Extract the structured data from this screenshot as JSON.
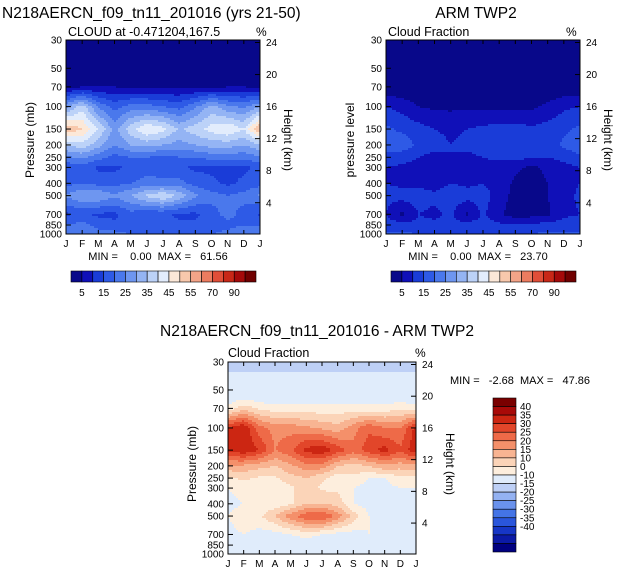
{
  "page": {
    "months": [
      "J",
      "F",
      "M",
      "A",
      "M",
      "J",
      "J",
      "A",
      "S",
      "O",
      "N",
      "D",
      "J"
    ],
    "pressure_ticks": [
      30,
      50,
      70,
      100,
      150,
      200,
      250,
      300,
      400,
      500,
      700,
      850,
      1000
    ],
    "height_ticks": [
      24,
      20,
      16,
      12,
      8,
      4
    ],
    "percent_symbol": "%",
    "pressure_label": "Pressure (mb)",
    "pressure_level_label": "pressure level",
    "height_label": "Height (km)"
  },
  "colors": {
    "seq": [
      "#08088a",
      "#1010b8",
      "#1a3cd8",
      "#2e5ae6",
      "#4a78ec",
      "#6e96f0",
      "#94b4f4",
      "#bcd2f8",
      "#e2ecfc",
      "#fce8d8",
      "#f8c8ac",
      "#f4a488",
      "#ec7c60",
      "#e04e38",
      "#c82818",
      "#a40a0a",
      "#700000"
    ],
    "diff": [
      "#000080",
      "#0b1aa6",
      "#1636c6",
      "#2a56dc",
      "#4474e6",
      "#6a92ec",
      "#94b2f2",
      "#bed0f6",
      "#e0ecfb",
      "#fdeedd",
      "#fbd4b8",
      "#f8b492",
      "#f4906a",
      "#ee6a48",
      "#e2462a",
      "#cc2612",
      "#a80a08",
      "#7a0000"
    ]
  },
  "panels": {
    "model": {
      "title": "N218AERCN_f09_tn11_201016 (yrs 21-50)",
      "subtitle": "CLOUD at -0.471204,167.5",
      "minmax": "MIN =    0.00  MAX =   61.56",
      "colorbar_labels": [
        "5",
        "15",
        "25",
        "35",
        "45",
        "55",
        "70",
        "90"
      ]
    },
    "obs": {
      "title": "ARM TWP2",
      "subtitle": "Cloud Fraction",
      "minmax": "MIN =    0.00  MAX =   23.70",
      "colorbar_labels": [
        "5",
        "15",
        "25",
        "35",
        "45",
        "55",
        "70",
        "90"
      ]
    },
    "diff": {
      "title": "N218AERCN_f09_tn11_201016 - ARM TWP2",
      "subtitle": "Cloud Fraction",
      "minmax": "MIN =   -2.68  MAX =   47.86",
      "colorbar_labels": [
        "40",
        "35",
        "30",
        "25",
        "20",
        "15",
        "10",
        "0",
        "-10",
        "-15",
        "-20",
        "-25",
        "-30",
        "-35",
        "-40"
      ]
    }
  },
  "chart_data": [
    {
      "type": "heatmap",
      "title": "N218AERCN_f09_tn11_201016 (yrs 21-50)",
      "subtitle": "CLOUD at -0.471204,167.5",
      "xlabel": "",
      "ylabel": "Pressure (mb)",
      "y2label": "Height (km)",
      "x": [
        "J",
        "F",
        "M",
        "A",
        "M",
        "J",
        "J",
        "A",
        "S",
        "O",
        "N",
        "D",
        "J"
      ],
      "y_pressure_mb": [
        30,
        50,
        70,
        100,
        150,
        200,
        250,
        300,
        400,
        500,
        700,
        850,
        1000
      ],
      "levels": [
        5,
        10,
        15,
        20,
        25,
        30,
        35,
        40,
        45,
        50,
        55,
        60,
        70,
        80,
        90,
        100
      ],
      "min": 0.0,
      "max": 61.56,
      "z": [
        [
          0,
          0,
          0,
          0,
          0,
          0,
          0,
          0,
          0,
          0,
          0,
          0,
          0
        ],
        [
          1,
          1,
          1,
          1,
          1,
          1,
          1,
          1,
          1,
          1,
          1,
          1,
          1
        ],
        [
          4,
          5,
          5,
          5,
          4,
          4,
          4,
          4,
          4,
          4,
          5,
          5,
          4
        ],
        [
          28,
          38,
          24,
          18,
          22,
          22,
          20,
          18,
          24,
          32,
          26,
          24,
          30
        ],
        [
          55,
          50,
          40,
          28,
          38,
          45,
          42,
          34,
          38,
          42,
          45,
          40,
          56
        ],
        [
          35,
          38,
          32,
          25,
          30,
          32,
          30,
          28,
          30,
          32,
          32,
          30,
          34
        ],
        [
          24,
          26,
          22,
          18,
          20,
          20,
          18,
          20,
          20,
          22,
          22,
          22,
          24
        ],
        [
          16,
          18,
          14,
          14,
          16,
          18,
          16,
          16,
          14,
          14,
          14,
          14,
          16
        ],
        [
          18,
          20,
          18,
          18,
          20,
          22,
          22,
          22,
          18,
          16,
          14,
          16,
          18
        ],
        [
          26,
          30,
          30,
          26,
          30,
          36,
          40,
          34,
          26,
          22,
          20,
          22,
          26
        ],
        [
          14,
          16,
          14,
          14,
          18,
          16,
          16,
          14,
          14,
          18,
          22,
          18,
          14
        ],
        [
          20,
          22,
          18,
          16,
          16,
          16,
          16,
          16,
          16,
          16,
          18,
          20,
          20
        ],
        [
          24,
          24,
          22,
          22,
          20,
          20,
          20,
          20,
          20,
          20,
          22,
          24,
          24
        ]
      ]
    },
    {
      "type": "heatmap",
      "title": "ARM TWP2",
      "subtitle": "Cloud Fraction",
      "xlabel": "",
      "ylabel": "pressure level",
      "y2label": "Height (km)",
      "x": [
        "J",
        "F",
        "M",
        "A",
        "M",
        "J",
        "J",
        "A",
        "S",
        "O",
        "N",
        "D",
        "J"
      ],
      "y_pressure_mb": [
        30,
        50,
        70,
        100,
        150,
        200,
        250,
        300,
        400,
        500,
        700,
        850,
        1000
      ],
      "levels": [
        5,
        10,
        15,
        20,
        25,
        30,
        35,
        40,
        45,
        50,
        55,
        60,
        70,
        80,
        90,
        100
      ],
      "min": 0.0,
      "max": 23.7,
      "z": [
        [
          0,
          0,
          0,
          0,
          0,
          0,
          0,
          0,
          0,
          0,
          0,
          0,
          0
        ],
        [
          0,
          0,
          0,
          0,
          0,
          0,
          0,
          0,
          0,
          0,
          0,
          0,
          0
        ],
        [
          1,
          1,
          1,
          1,
          1,
          1,
          1,
          1,
          1,
          1,
          1,
          1,
          1
        ],
        [
          10,
          8,
          5,
          4,
          4,
          4,
          4,
          4,
          4,
          4,
          6,
          9,
          10
        ],
        [
          16,
          14,
          12,
          10,
          9,
          10,
          11,
          12,
          12,
          11,
          12,
          14,
          16
        ],
        [
          16,
          18,
          14,
          12,
          10,
          11,
          12,
          12,
          14,
          12,
          12,
          16,
          18
        ],
        [
          14,
          12,
          10,
          8,
          10,
          9,
          10,
          11,
          12,
          10,
          10,
          12,
          14
        ],
        [
          10,
          9,
          8,
          7,
          9,
          8,
          9,
          8,
          6,
          4,
          6,
          8,
          10
        ],
        [
          10,
          9,
          9,
          8,
          10,
          9,
          10,
          8,
          4,
          3,
          5,
          8,
          10
        ],
        [
          11,
          12,
          12,
          11,
          13,
          12,
          12,
          8,
          3,
          3,
          5,
          8,
          11
        ],
        [
          10,
          4,
          10,
          9,
          11,
          4,
          11,
          6,
          2,
          3,
          4,
          9,
          10
        ],
        [
          12,
          12,
          11,
          11,
          12,
          12,
          12,
          11,
          11,
          11,
          12,
          12,
          12
        ],
        [
          16,
          16,
          15,
          15,
          15,
          15,
          15,
          15,
          15,
          15,
          16,
          16,
          16
        ]
      ]
    },
    {
      "type": "heatmap",
      "title": "N218AERCN_f09_tn11_201016 - ARM TWP2",
      "subtitle": "Cloud Fraction",
      "xlabel": "",
      "ylabel": "Pressure (mb)",
      "y2label": "Height (km)",
      "x": [
        "J",
        "F",
        "M",
        "A",
        "M",
        "J",
        "J",
        "A",
        "S",
        "O",
        "N",
        "D",
        "J"
      ],
      "y_pressure_mb": [
        30,
        50,
        70,
        100,
        150,
        200,
        250,
        300,
        400,
        500,
        700,
        850,
        1000
      ],
      "levels": [
        -40,
        -35,
        -30,
        -25,
        -20,
        -15,
        -10,
        0,
        10,
        15,
        20,
        25,
        30,
        35,
        40
      ],
      "min": -2.68,
      "max": 47.86,
      "z": [
        [
          -1,
          -1,
          -1,
          -1,
          -1,
          -1,
          -1,
          -1,
          -1,
          -1,
          -1,
          -1,
          -1
        ],
        [
          2,
          2,
          2,
          2,
          2,
          2,
          2,
          2,
          2,
          2,
          2,
          2,
          2
        ],
        [
          12,
          18,
          14,
          12,
          12,
          12,
          12,
          12,
          12,
          12,
          12,
          14,
          12
        ],
        [
          40,
          45,
          32,
          28,
          28,
          26,
          24,
          22,
          28,
          34,
          30,
          30,
          42
        ],
        [
          42,
          44,
          40,
          30,
          34,
          42,
          44,
          38,
          32,
          38,
          42,
          36,
          44
        ],
        [
          24,
          24,
          22,
          20,
          24,
          28,
          28,
          20,
          18,
          20,
          24,
          22,
          24
        ],
        [
          14,
          16,
          14,
          14,
          18,
          20,
          16,
          12,
          14,
          10,
          10,
          14,
          14
        ],
        [
          10,
          12,
          12,
          12,
          14,
          18,
          14,
          14,
          10,
          8,
          8,
          10,
          10
        ],
        [
          8,
          10,
          10,
          12,
          14,
          20,
          20,
          18,
          10,
          8,
          6,
          8,
          8
        ],
        [
          10,
          14,
          14,
          20,
          28,
          34,
          36,
          28,
          18,
          10,
          8,
          10,
          10
        ],
        [
          8,
          10,
          8,
          8,
          10,
          12,
          10,
          8,
          8,
          10,
          10,
          8,
          6
        ],
        [
          4,
          8,
          6,
          6,
          6,
          6,
          6,
          6,
          6,
          6,
          6,
          6,
          4
        ],
        [
          4,
          4,
          4,
          4,
          4,
          4,
          4,
          4,
          4,
          4,
          4,
          4,
          4
        ]
      ]
    }
  ]
}
